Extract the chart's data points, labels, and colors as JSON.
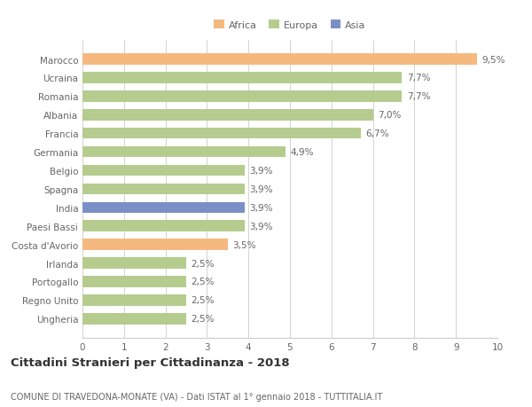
{
  "categories": [
    "Ungheria",
    "Regno Unito",
    "Portogallo",
    "Irlanda",
    "Costa d'Avorio",
    "Paesi Bassi",
    "India",
    "Spagna",
    "Belgio",
    "Germania",
    "Francia",
    "Albania",
    "Romania",
    "Ucraina",
    "Marocco"
  ],
  "values": [
    2.5,
    2.5,
    2.5,
    2.5,
    3.5,
    3.9,
    3.9,
    3.9,
    3.9,
    4.9,
    6.7,
    7.0,
    7.7,
    7.7,
    9.5
  ],
  "colors": [
    "#b5cc8e",
    "#b5cc8e",
    "#b5cc8e",
    "#b5cc8e",
    "#f5b97f",
    "#b5cc8e",
    "#7b8fc7",
    "#b5cc8e",
    "#b5cc8e",
    "#b5cc8e",
    "#b5cc8e",
    "#b5cc8e",
    "#b5cc8e",
    "#b5cc8e",
    "#f5b97f"
  ],
  "labels": [
    "2,5%",
    "2,5%",
    "2,5%",
    "2,5%",
    "3,5%",
    "3,9%",
    "3,9%",
    "3,9%",
    "3,9%",
    "4,9%",
    "6,7%",
    "7,0%",
    "7,7%",
    "7,7%",
    "9,5%"
  ],
  "legend": [
    {
      "label": "Africa",
      "color": "#f5b97f"
    },
    {
      "label": "Europa",
      "color": "#b5cc8e"
    },
    {
      "label": "Asia",
      "color": "#7b8fc7"
    }
  ],
  "xlim": [
    0,
    10
  ],
  "xticks": [
    0,
    1,
    2,
    3,
    4,
    5,
    6,
    7,
    8,
    9,
    10
  ],
  "title_main": "Cittadini Stranieri per Cittadinanza - 2018",
  "title_sub": "COMUNE DI TRAVEDONA-MONATE (VA) - Dati ISTAT al 1° gennaio 2018 - TUTTITALIA.IT",
  "background_color": "#ffffff",
  "grid_color": "#cccccc",
  "bar_height": 0.6,
  "label_fontsize": 7.5,
  "tick_fontsize": 7.5,
  "title_fontsize": 9.5,
  "subtitle_fontsize": 7,
  "text_color": "#666666"
}
